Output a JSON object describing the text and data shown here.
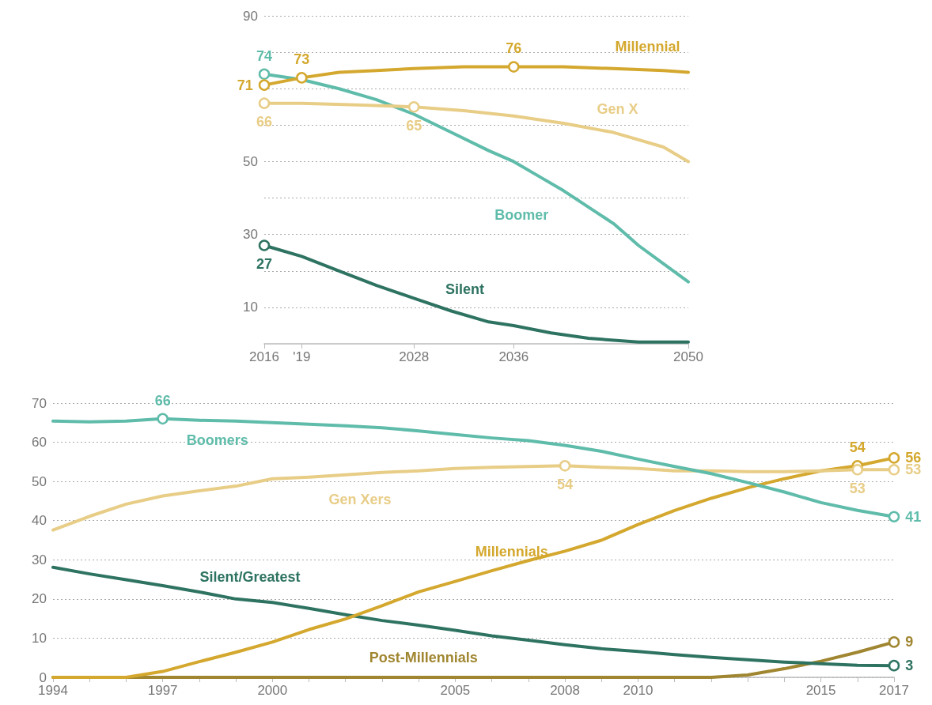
{
  "chart_data": [
    {
      "type": "line",
      "xlim": [
        2016,
        2050
      ],
      "xticks": [
        2016,
        {
          "value": 2019,
          "label": "'19"
        },
        2028,
        2036,
        2050
      ],
      "ylim": [
        0,
        90
      ],
      "yticks": [
        10,
        {
          "value": 20,
          "label": null
        },
        30,
        {
          "value": 40,
          "label": null
        },
        50,
        {
          "value": 60,
          "label": null
        },
        {
          "value": 70,
          "label": null
        },
        {
          "value": 80,
          "label": null
        },
        90
      ],
      "grid": "y",
      "legend": false,
      "series": [
        {
          "name": "Millennial",
          "color": "#d4a82e",
          "x": [
            2016,
            2019,
            2022,
            2025,
            2028,
            2032,
            2036,
            2040,
            2044,
            2048,
            2050
          ],
          "values": [
            71,
            73,
            74.5,
            75,
            75.5,
            76,
            76,
            76,
            75.5,
            75,
            74.5
          ],
          "value_labels": [
            "71",
            "73",
            null,
            null,
            null,
            null,
            "76",
            null,
            null,
            null,
            null
          ]
        },
        {
          "name": "Gen X",
          "color": "#e8cd87",
          "x": [
            2016,
            2019,
            2024,
            2028,
            2032,
            2036,
            2040,
            2044,
            2048,
            2050
          ],
          "values": [
            66,
            66,
            65.5,
            65,
            64,
            62.5,
            60.5,
            58,
            54,
            50
          ],
          "value_labels": [
            "66",
            null,
            null,
            "65",
            null,
            null,
            null,
            null,
            null,
            null
          ]
        },
        {
          "name": "Boomer",
          "color": "#5fbcaa",
          "x": [
            2016,
            2019,
            2022,
            2025,
            2028,
            2031,
            2034,
            2036,
            2038,
            2040,
            2042,
            2044,
            2046,
            2048,
            2050
          ],
          "values": [
            74,
            72.5,
            70,
            67,
            63,
            58,
            53,
            50,
            46,
            42,
            37.5,
            33,
            27,
            22,
            17
          ],
          "value_labels": [
            "74",
            null,
            null,
            null,
            null,
            null,
            null,
            null,
            null,
            null,
            null,
            null,
            null,
            null,
            null
          ]
        },
        {
          "name": "Silent",
          "color": "#2e7361",
          "x": [
            2016,
            2019,
            2022,
            2025,
            2028,
            2031,
            2034,
            2036,
            2039,
            2042,
            2046,
            2050
          ],
          "values": [
            27,
            24,
            20,
            16,
            12.5,
            9,
            6,
            5,
            3,
            1.5,
            0.5,
            0.5
          ],
          "value_labels": [
            "27",
            null,
            null,
            null,
            null,
            null,
            null,
            null,
            null,
            null,
            null,
            null
          ]
        }
      ]
    },
    {
      "type": "line",
      "x": [
        1994,
        1995,
        1996,
        1997,
        1998,
        1999,
        2000,
        2001,
        2002,
        2003,
        2004,
        2005,
        2006,
        2007,
        2008,
        2009,
        2010,
        2011,
        2012,
        2013,
        2014,
        2015,
        2016,
        2017
      ],
      "xlim": [
        1994,
        2017
      ],
      "xticks": [
        1994,
        {
          "value": 1995,
          "label": null
        },
        {
          "value": 1996,
          "label": null
        },
        1997,
        {
          "value": 1998,
          "label": null
        },
        {
          "value": 1999,
          "label": null
        },
        2000,
        {
          "value": 2001,
          "label": null
        },
        {
          "value": 2002,
          "label": null
        },
        {
          "value": 2003,
          "label": null
        },
        {
          "value": 2004,
          "label": null
        },
        2005,
        {
          "value": 2006,
          "label": null
        },
        {
          "value": 2007,
          "label": null
        },
        2008,
        {
          "value": 2009,
          "label": null
        },
        2010,
        {
          "value": 2011,
          "label": null
        },
        {
          "value": 2012,
          "label": null
        },
        {
          "value": 2013,
          "label": null
        },
        {
          "value": 2014,
          "label": null
        },
        2015,
        {
          "value": 2016,
          "label": null
        },
        2017
      ],
      "ylim": [
        0,
        70
      ],
      "yticks": [
        0,
        10,
        20,
        30,
        40,
        50,
        60,
        70
      ],
      "grid": "y",
      "legend": false,
      "series": [
        {
          "name": "Boomers",
          "color": "#5fbcaa",
          "values": [
            65.4,
            65.2,
            65.4,
            66,
            65.6,
            65.4,
            65,
            64.6,
            64.2,
            63.7,
            62.9,
            62,
            61.1,
            60.4,
            59.2,
            57.7,
            55.7,
            53.8,
            52,
            49.7,
            47.3,
            44.6,
            42.6,
            41
          ],
          "value_labels": [
            null,
            null,
            null,
            "66",
            null,
            null,
            null,
            null,
            null,
            null,
            null,
            null,
            null,
            null,
            null,
            null,
            null,
            null,
            null,
            null,
            null,
            null,
            null,
            "41"
          ]
        },
        {
          "name": "Gen Xers",
          "color": "#e8cd87",
          "values": [
            37.6,
            41.1,
            44.2,
            46.3,
            47.6,
            48.8,
            50.7,
            51.1,
            51.7,
            52.3,
            52.7,
            53.3,
            53.6,
            53.8,
            54,
            53.6,
            53.3,
            52.7,
            52.7,
            52.5,
            52.5,
            52.7,
            53,
            53
          ],
          "value_labels": [
            null,
            null,
            null,
            null,
            null,
            null,
            null,
            null,
            null,
            null,
            null,
            null,
            null,
            null,
            "54",
            null,
            null,
            null,
            null,
            null,
            null,
            null,
            "53",
            "53"
          ]
        },
        {
          "name": "Millennials",
          "color": "#d4a82e",
          "values": [
            0,
            0,
            0,
            1.5,
            4,
            6.4,
            9,
            12.2,
            14.9,
            18.3,
            21.8,
            24.5,
            27.2,
            29.8,
            32.2,
            35,
            39,
            42.6,
            45.7,
            48.4,
            50.7,
            52.7,
            54,
            56
          ],
          "value_labels": [
            null,
            null,
            null,
            null,
            null,
            null,
            null,
            null,
            null,
            null,
            null,
            null,
            null,
            null,
            null,
            null,
            null,
            null,
            null,
            null,
            null,
            null,
            "54",
            "56"
          ]
        },
        {
          "name": "Silent/Greatest",
          "color": "#2e7361",
          "values": [
            28.1,
            26.4,
            24.9,
            23.4,
            21.8,
            20,
            19.1,
            17.6,
            16,
            14.5,
            13.3,
            12,
            10.6,
            9.5,
            8.3,
            7.3,
            6.6,
            5.8,
            5.1,
            4.5,
            3.9,
            3.5,
            3.1,
            3
          ],
          "value_labels": [
            null,
            null,
            null,
            null,
            null,
            null,
            null,
            null,
            null,
            null,
            null,
            null,
            null,
            null,
            null,
            null,
            null,
            null,
            null,
            null,
            null,
            null,
            null,
            "3"
          ]
        },
        {
          "name": "Post-Millennials",
          "color": "#a08630",
          "values": [
            0,
            0,
            0,
            0,
            0,
            0,
            0,
            0,
            0,
            0,
            0,
            0,
            0,
            0,
            0,
            0,
            0,
            0,
            0,
            0.6,
            2.2,
            4.1,
            6.4,
            9
          ],
          "value_labels": [
            null,
            null,
            null,
            null,
            null,
            null,
            null,
            null,
            null,
            null,
            null,
            null,
            null,
            null,
            null,
            null,
            null,
            null,
            null,
            null,
            null,
            null,
            null,
            "9"
          ]
        }
      ]
    }
  ]
}
